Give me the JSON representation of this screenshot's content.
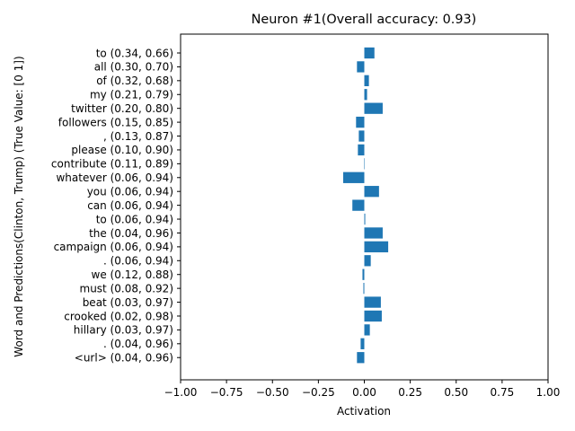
{
  "chart_data": {
    "type": "bar",
    "orientation": "horizontal",
    "title": "Neuron #1(Overall accuracy: 0.93)",
    "xlabel": "Activation",
    "ylabel": "Word and Predictions(Clinton, Trump) (True Value: [0 1])",
    "xlim": [
      -1.0,
      1.0
    ],
    "xticks": [
      "−1.00",
      "−0.75",
      "−0.50",
      "−0.25",
      "0.00",
      "0.25",
      "0.50",
      "0.75",
      "1.00"
    ],
    "xtick_values": [
      -1.0,
      -0.75,
      -0.5,
      -0.25,
      0.0,
      0.25,
      0.5,
      0.75,
      1.0
    ],
    "grid": false,
    "bar_color": "#1f77b4",
    "categories": [
      "to (0.34, 0.66)",
      "all (0.30, 0.70)",
      "of (0.32, 0.68)",
      "my (0.21, 0.79)",
      "twitter (0.20, 0.80)",
      "followers (0.15, 0.85)",
      ", (0.13, 0.87)",
      "please (0.10, 0.90)",
      "contribute (0.11, 0.89)",
      "whatever (0.06, 0.94)",
      "you (0.06, 0.94)",
      "can (0.06, 0.94)",
      "to (0.06, 0.94)",
      "the (0.04, 0.96)",
      "campaign (0.06, 0.94)",
      ". (0.06, 0.94)",
      "we (0.12, 0.88)",
      "must (0.08, 0.92)",
      "beat (0.03, 0.97)",
      "crooked (0.02, 0.98)",
      "hillary (0.03, 0.97)",
      ". (0.04, 0.96)",
      "<url> (0.04, 0.96)"
    ],
    "values": [
      0.055,
      -0.04,
      0.025,
      0.015,
      0.1,
      -0.045,
      -0.03,
      -0.035,
      0.0,
      -0.115,
      0.08,
      -0.065,
      0.005,
      0.1,
      0.13,
      0.035,
      -0.01,
      -0.005,
      0.09,
      0.095,
      0.03,
      -0.02,
      -0.04
    ]
  }
}
